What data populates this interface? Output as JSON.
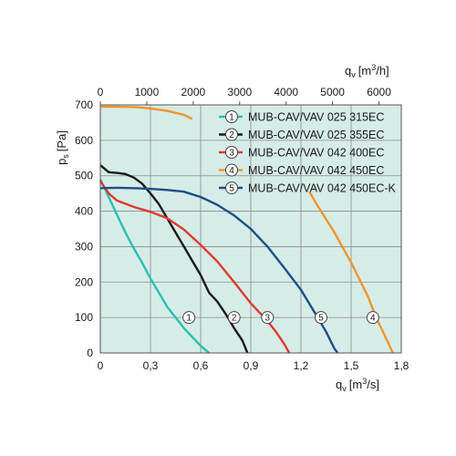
{
  "chart_data": {
    "type": "line",
    "title": "",
    "ylabel": {
      "symbol": "p",
      "sub": "s",
      "unit": "[Pa]"
    },
    "xlabel": {
      "symbol": "q",
      "sub": "v",
      "unit_pre": "[m",
      "unit_sup": "3",
      "unit_post": "/s]"
    },
    "x2label": {
      "symbol": "q",
      "sub": "v",
      "unit_pre": "[m",
      "unit_sup": "3",
      "unit_post": "/h]"
    },
    "xlim": [
      0,
      1.8
    ],
    "ylim": [
      0,
      700
    ],
    "x2lim": [
      0,
      6480
    ],
    "xticks": [
      "0",
      "0,3",
      "0,6",
      "0,9",
      "1,2",
      "1,5",
      "1,8"
    ],
    "yticks": [
      "0",
      "100",
      "200",
      "300",
      "400",
      "500",
      "600",
      "700"
    ],
    "x2ticks": [
      "0",
      "1000",
      "2000",
      "3000",
      "4000",
      "5000",
      "6000"
    ],
    "grid": true,
    "legend_position": "top-right",
    "background": "#d6ece8",
    "series": [
      {
        "name": "MUB-CAV/VAV 025 315EC",
        "marker": "1",
        "color": "#2bbfb1",
        "points": [
          [
            0,
            490
          ],
          [
            0.05,
            440
          ],
          [
            0.1,
            390
          ],
          [
            0.15,
            340
          ],
          [
            0.2,
            295
          ],
          [
            0.25,
            255
          ],
          [
            0.3,
            210
          ],
          [
            0.35,
            170
          ],
          [
            0.4,
            130
          ],
          [
            0.45,
            100
          ],
          [
            0.5,
            70
          ],
          [
            0.55,
            45
          ],
          [
            0.6,
            20
          ],
          [
            0.65,
            0
          ]
        ]
      },
      {
        "name": "MUB-CAV/VAV 025 355EC",
        "marker": "2",
        "color": "#1a1a1a",
        "points": [
          [
            0,
            530
          ],
          [
            0.05,
            510
          ],
          [
            0.1,
            508
          ],
          [
            0.15,
            505
          ],
          [
            0.2,
            495
          ],
          [
            0.25,
            478
          ],
          [
            0.3,
            450
          ],
          [
            0.35,
            420
          ],
          [
            0.4,
            380
          ],
          [
            0.45,
            340
          ],
          [
            0.5,
            300
          ],
          [
            0.55,
            260
          ],
          [
            0.6,
            220
          ],
          [
            0.65,
            170
          ],
          [
            0.7,
            145
          ],
          [
            0.75,
            110
          ],
          [
            0.8,
            70
          ],
          [
            0.85,
            35
          ],
          [
            0.88,
            0
          ]
        ]
      },
      {
        "name": "MUB-CAV/VAV 042 400EC",
        "marker": "3",
        "color": "#e03a2b",
        "points": [
          [
            0,
            485
          ],
          [
            0.05,
            450
          ],
          [
            0.1,
            430
          ],
          [
            0.2,
            412
          ],
          [
            0.3,
            398
          ],
          [
            0.4,
            380
          ],
          [
            0.5,
            348
          ],
          [
            0.6,
            305
          ],
          [
            0.7,
            258
          ],
          [
            0.8,
            200
          ],
          [
            0.9,
            140
          ],
          [
            1.0,
            90
          ],
          [
            1.05,
            60
          ],
          [
            1.1,
            25
          ],
          [
            1.13,
            0
          ]
        ]
      },
      {
        "name": "MUB-CAV/VAV 042 450EC",
        "marker": "4",
        "color": "#f0952a",
        "points": [
          [
            0,
            695
          ],
          [
            0.2,
            694
          ],
          [
            0.3,
            690
          ],
          [
            0.4,
            683
          ],
          [
            0.5,
            672
          ],
          [
            0.55,
            660
          ],
          [
            1.25,
            455
          ],
          [
            1.3,
            415
          ],
          [
            1.4,
            340
          ],
          [
            1.5,
            255
          ],
          [
            1.6,
            160
          ],
          [
            1.65,
            100
          ],
          [
            1.7,
            50
          ],
          [
            1.75,
            0
          ]
        ]
      },
      {
        "name": "MUB-CAV/VAV 042 450EC-K",
        "marker": "5",
        "color": "#1e4e86",
        "points": [
          [
            0,
            465
          ],
          [
            0.1,
            466
          ],
          [
            0.2,
            465
          ],
          [
            0.3,
            463
          ],
          [
            0.4,
            460
          ],
          [
            0.5,
            455
          ],
          [
            0.6,
            440
          ],
          [
            0.7,
            418
          ],
          [
            0.8,
            388
          ],
          [
            0.9,
            350
          ],
          [
            1.0,
            300
          ],
          [
            1.1,
            240
          ],
          [
            1.2,
            178
          ],
          [
            1.3,
            100
          ],
          [
            1.35,
            60
          ],
          [
            1.4,
            12
          ],
          [
            1.42,
            0
          ]
        ]
      }
    ],
    "marker_points": [
      {
        "series": 0,
        "x": 0.53,
        "y": 100
      },
      {
        "series": 1,
        "x": 0.8,
        "y": 100
      },
      {
        "series": 2,
        "x": 1.0,
        "y": 100
      },
      {
        "series": 4,
        "x": 1.32,
        "y": 100
      },
      {
        "series": 3,
        "x": 1.63,
        "y": 100
      }
    ]
  }
}
